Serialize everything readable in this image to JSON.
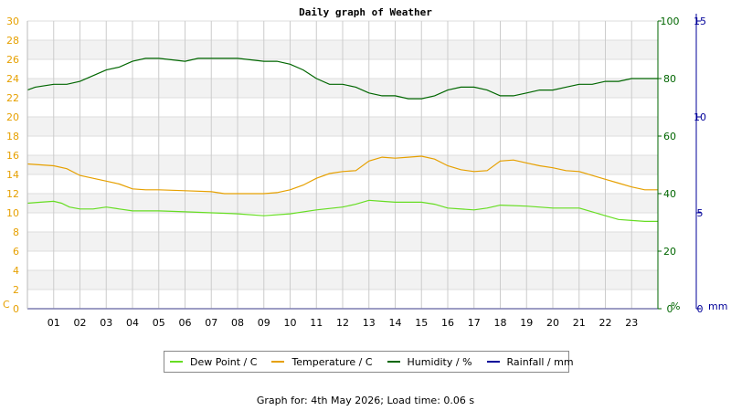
{
  "chart_data": {
    "type": "line",
    "title": "Daily graph of Weather",
    "x": {
      "tick_labels": [
        "01",
        "02",
        "03",
        "04",
        "05",
        "06",
        "07",
        "08",
        "09",
        "10",
        "11",
        "12",
        "13",
        "14",
        "15",
        "16",
        "17",
        "18",
        "19",
        "20",
        "21",
        "22",
        "23"
      ],
      "range": [
        0,
        24
      ]
    },
    "axes": {
      "left": {
        "unit_label": "C",
        "range": [
          0,
          30
        ],
        "ticks": [
          0,
          2,
          4,
          6,
          8,
          10,
          12,
          14,
          16,
          18,
          20,
          22,
          24,
          26,
          28,
          30
        ],
        "color": "#e6a000"
      },
      "humidity": {
        "unit_label": "%",
        "range": [
          0,
          100
        ],
        "ticks": [
          0,
          20,
          40,
          60,
          80,
          100
        ],
        "color": "#006600"
      },
      "rainfall": {
        "unit_label": "mm",
        "range": [
          0,
          15
        ],
        "ticks": [
          0,
          5,
          10,
          15
        ],
        "color": "#000099"
      }
    },
    "grid": true,
    "legend_position": "bottom",
    "series": [
      {
        "name": "Dew Point / C",
        "axis": "left",
        "color": "#66dd22",
        "points": [
          [
            0,
            11.0
          ],
          [
            0.5,
            11.1
          ],
          [
            1,
            11.2
          ],
          [
            1.3,
            11.0
          ],
          [
            1.6,
            10.6
          ],
          [
            2,
            10.4
          ],
          [
            2.5,
            10.4
          ],
          [
            3,
            10.6
          ],
          [
            3.5,
            10.4
          ],
          [
            4,
            10.2
          ],
          [
            5,
            10.2
          ],
          [
            6,
            10.1
          ],
          [
            7,
            10.0
          ],
          [
            8,
            9.9
          ],
          [
            9,
            9.7
          ],
          [
            10,
            9.9
          ],
          [
            11,
            10.3
          ],
          [
            12,
            10.6
          ],
          [
            12.5,
            10.9
          ],
          [
            13,
            11.3
          ],
          [
            13.5,
            11.2
          ],
          [
            14,
            11.1
          ],
          [
            15,
            11.1
          ],
          [
            15.5,
            10.9
          ],
          [
            16,
            10.5
          ],
          [
            17,
            10.3
          ],
          [
            17.5,
            10.5
          ],
          [
            18,
            10.8
          ],
          [
            19,
            10.7
          ],
          [
            20,
            10.5
          ],
          [
            21,
            10.5
          ],
          [
            21.5,
            10.1
          ],
          [
            22,
            9.7
          ],
          [
            22.5,
            9.3
          ],
          [
            23,
            9.2
          ],
          [
            23.5,
            9.1
          ],
          [
            24,
            9.1
          ]
        ]
      },
      {
        "name": "Temperature / C",
        "axis": "left",
        "color": "#e6a000",
        "points": [
          [
            0,
            15.1
          ],
          [
            0.5,
            15.0
          ],
          [
            1,
            14.9
          ],
          [
            1.5,
            14.6
          ],
          [
            2,
            13.9
          ],
          [
            2.5,
            13.6
          ],
          [
            3,
            13.3
          ],
          [
            3.5,
            13.0
          ],
          [
            4,
            12.5
          ],
          [
            4.5,
            12.4
          ],
          [
            5,
            12.4
          ],
          [
            6,
            12.3
          ],
          [
            7,
            12.2
          ],
          [
            7.5,
            12.0
          ],
          [
            8,
            12.0
          ],
          [
            9,
            12.0
          ],
          [
            9.5,
            12.1
          ],
          [
            10,
            12.4
          ],
          [
            10.5,
            12.9
          ],
          [
            11,
            13.6
          ],
          [
            11.5,
            14.1
          ],
          [
            12,
            14.3
          ],
          [
            12.5,
            14.4
          ],
          [
            13,
            15.4
          ],
          [
            13.5,
            15.8
          ],
          [
            14,
            15.7
          ],
          [
            14.5,
            15.8
          ],
          [
            15,
            15.9
          ],
          [
            15.5,
            15.6
          ],
          [
            16,
            14.9
          ],
          [
            16.5,
            14.5
          ],
          [
            17,
            14.3
          ],
          [
            17.5,
            14.4
          ],
          [
            18,
            15.4
          ],
          [
            18.5,
            15.5
          ],
          [
            19,
            15.2
          ],
          [
            19.5,
            14.9
          ],
          [
            20,
            14.7
          ],
          [
            20.5,
            14.4
          ],
          [
            21,
            14.3
          ],
          [
            21.5,
            13.9
          ],
          [
            22,
            13.5
          ],
          [
            22.5,
            13.1
          ],
          [
            23,
            12.7
          ],
          [
            23.5,
            12.4
          ],
          [
            24,
            12.4
          ]
        ]
      },
      {
        "name": "Humidity / %",
        "axis": "humidity",
        "color": "#006600",
        "points": [
          [
            0,
            76
          ],
          [
            0.3,
            77
          ],
          [
            1,
            78
          ],
          [
            1.5,
            78
          ],
          [
            2,
            79
          ],
          [
            2.5,
            81
          ],
          [
            3,
            83
          ],
          [
            3.5,
            84
          ],
          [
            4,
            86
          ],
          [
            4.5,
            87
          ],
          [
            5,
            87
          ],
          [
            6,
            86
          ],
          [
            6.5,
            87
          ],
          [
            7,
            87
          ],
          [
            8,
            87
          ],
          [
            9,
            86
          ],
          [
            9.5,
            86
          ],
          [
            10,
            85
          ],
          [
            10.5,
            83
          ],
          [
            11,
            80
          ],
          [
            11.5,
            78
          ],
          [
            12,
            78
          ],
          [
            12.5,
            77
          ],
          [
            13,
            75
          ],
          [
            13.5,
            74
          ],
          [
            14,
            74
          ],
          [
            14.5,
            73
          ],
          [
            15,
            73
          ],
          [
            15.5,
            74
          ],
          [
            16,
            76
          ],
          [
            16.5,
            77
          ],
          [
            17,
            77
          ],
          [
            17.5,
            76
          ],
          [
            18,
            74
          ],
          [
            18.5,
            74
          ],
          [
            19,
            75
          ],
          [
            19.5,
            76
          ],
          [
            20,
            76
          ],
          [
            20.5,
            77
          ],
          [
            21,
            78
          ],
          [
            21.5,
            78
          ],
          [
            22,
            79
          ],
          [
            22.5,
            79
          ],
          [
            23,
            80
          ],
          [
            24,
            80
          ]
        ]
      },
      {
        "name": "Rainfall / mm",
        "axis": "rainfall",
        "color": "#000099",
        "points": [
          [
            0,
            0
          ],
          [
            24,
            0
          ]
        ]
      }
    ]
  },
  "footer": {
    "prefix": "Graph for: ",
    "date": "4th May 2026",
    "separator": "; ",
    "load_time": "Load time: 0.06 s"
  }
}
